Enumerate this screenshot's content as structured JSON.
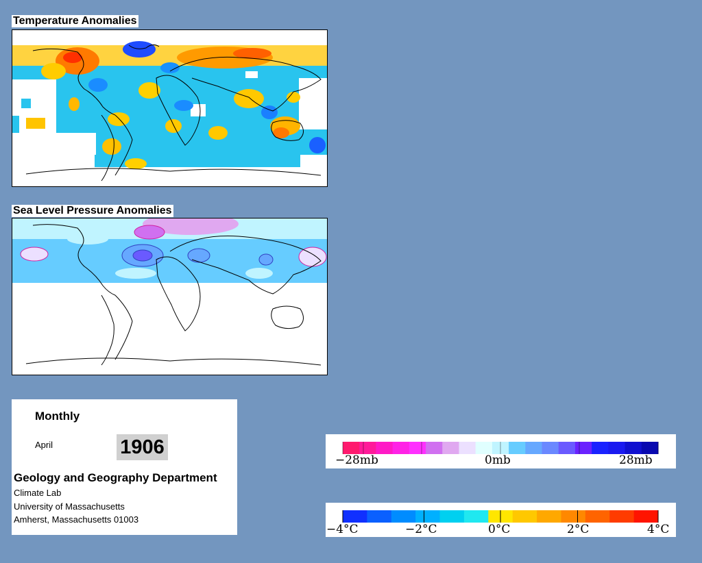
{
  "maps": {
    "temperature": {
      "title": "Temperature Anomalies"
    },
    "pressure": {
      "title": "Sea Level Pressure Anomalies"
    }
  },
  "info": {
    "frequency": "Monthly",
    "month": "April",
    "year": "1906",
    "department": "Geology and Geography Department",
    "address_lines": [
      "Climate Lab",
      "University of Massachusetts",
      "Amherst, Massachusetts 01003"
    ]
  },
  "legends": {
    "pressure": {
      "labels": [
        "−28mb",
        "0mb",
        "28mb"
      ],
      "colors": [
        "#ff1a6e",
        "#ff1a9a",
        "#ff1ac6",
        "#ff22e6",
        "#ff30ff",
        "#d070f0",
        "#e0a8f0",
        "#ece0ff",
        "#e0ffff",
        "#c0f4ff",
        "#66ccff",
        "#66a8ff",
        "#6a88ff",
        "#6a5aff",
        "#6a22ff",
        "#1a22ff",
        "#1a1af0",
        "#1010d0",
        "#0808b0"
      ]
    },
    "temperature": {
      "labels": [
        "−4°C",
        "−2°C",
        "0°C",
        "2°C",
        "4°C"
      ],
      "colors": [
        "#1030ff",
        "#0a60ff",
        "#008cff",
        "#00b0ff",
        "#00d0f0",
        "#20e8f0",
        "#ffe600",
        "#ffc800",
        "#ffa800",
        "#ff8800",
        "#ff6400",
        "#ff3c00",
        "#ff1400"
      ]
    }
  }
}
